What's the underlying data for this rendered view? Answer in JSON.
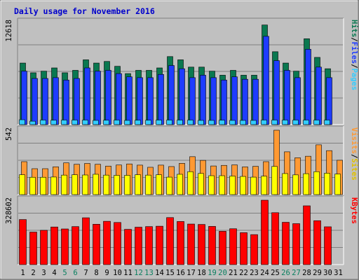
{
  "chart_data": {
    "type": "bar",
    "title": "Daily usage for November 2016",
    "categories": [
      "1",
      "2",
      "3",
      "4",
      "5",
      "6",
      "7",
      "8",
      "9",
      "10",
      "11",
      "12",
      "13",
      "14",
      "15",
      "16",
      "17",
      "18",
      "19",
      "20",
      "21",
      "22",
      "23",
      "24",
      "25",
      "26",
      "27",
      "28",
      "29",
      "30",
      "31"
    ],
    "weekend_days": [
      "5",
      "6",
      "12",
      "13",
      "19",
      "20",
      "26",
      "27"
    ],
    "panels": [
      {
        "id": "hits-files-pages",
        "max_label": "12618",
        "ymax": 12618,
        "right_labels": [
          "Pages",
          "Files",
          "Hits"
        ],
        "series": [
          {
            "name": "Hits",
            "color": "#0a7850",
            "values": [
              7600,
              6400,
              6600,
              7000,
              6400,
              6700,
              8000,
              7600,
              7800,
              7200,
              6300,
              6700,
              6700,
              7000,
              8400,
              8000,
              7100,
              7100,
              6600,
              6100,
              6700,
              6100,
              6100,
              12300,
              9000,
              7600,
              6600,
              10600,
              8300,
              6900,
              null
            ]
          },
          {
            "name": "Files",
            "color": "#1e3cff",
            "values": [
              6600,
              5700,
              5700,
              5800,
              5500,
              5700,
              7000,
              6600,
              6700,
              6300,
              5900,
              5800,
              5800,
              6200,
              7300,
              6900,
              5800,
              6100,
              5800,
              5500,
              5900,
              5600,
              5600,
              10900,
              7900,
              6700,
              5800,
              9300,
              7100,
              5800,
              null
            ]
          },
          {
            "name": "Pages",
            "color": "#33ccff",
            "values": [
              600,
              420,
              560,
              540,
              560,
              560,
              560,
              520,
              540,
              560,
              520,
              540,
              540,
              560,
              560,
              560,
              560,
              520,
              520,
              540,
              520,
              520,
              520,
              560,
              560,
              560,
              560,
              560,
              560,
              560,
              null
            ]
          }
        ]
      },
      {
        "id": "visits-sites",
        "max_label": "542",
        "ymax": 542,
        "right_labels": [
          "Sites",
          "Visits"
        ],
        "series": [
          {
            "name": "Visits",
            "color": "#ff9933",
            "values": [
              277,
              218,
              218,
              234,
              267,
              255,
              262,
              255,
              240,
              249,
              258,
              248,
              230,
              248,
              236,
              263,
              319,
              288,
              241,
              246,
              250,
              233,
              238,
              277,
              542,
              360,
              310,
              323,
              419,
              370,
              289
            ]
          },
          {
            "name": "Sites",
            "color": "#ffff00",
            "values": [
              167,
              146,
              146,
              148,
              164,
              167,
              165,
              171,
              164,
              162,
              162,
              167,
              164,
              167,
              147,
              171,
              193,
              178,
              159,
              159,
              156,
              153,
              147,
              155,
              237,
              177,
              166,
              176,
              193,
              180,
              173
            ]
          }
        ]
      },
      {
        "id": "kbytes",
        "max_label": "328602",
        "ymax": 328602,
        "right_labels": [
          "KBytes"
        ],
        "series": [
          {
            "name": "KBytes",
            "color": "#ff0000",
            "values": [
              230000,
              166000,
              175000,
              192000,
              182000,
              194000,
              239000,
              206000,
              221000,
              215000,
              180000,
              191000,
              194000,
              196000,
              240000,
              220000,
              207000,
              205000,
              195000,
              170000,
              183000,
              163000,
              153000,
              328602,
              265000,
              216000,
              209000,
              300000,
              224000,
              193000,
              null
            ]
          }
        ]
      }
    ]
  }
}
